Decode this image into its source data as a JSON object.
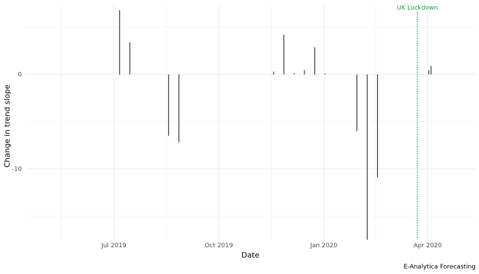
{
  "chart_data": {
    "type": "bar",
    "xlabel": "Date",
    "ylabel": "Change in trend slope",
    "x_ticks": [
      "2019-07-01",
      "2019-10-01",
      "2020-01-01",
      "2020-04-01"
    ],
    "x_tick_labels": [
      "Jul 2019",
      "Oct 2019",
      "Jan 2020",
      "Apr 2020"
    ],
    "y_ticks": [
      0,
      -10
    ],
    "y_tick_labels": [
      "0",
      "-10"
    ],
    "xlim": [
      "2019-04-15",
      "2020-05-13"
    ],
    "ylim": [
      -17.5,
      7.3
    ],
    "grid": true,
    "bar_color": "#333333",
    "points": [
      {
        "x": "2019-07-06",
        "y": 6.8
      },
      {
        "x": "2019-07-15",
        "y": 3.4
      },
      {
        "x": "2019-08-18",
        "y": -6.5
      },
      {
        "x": "2019-08-27",
        "y": -7.2
      },
      {
        "x": "2019-11-18",
        "y": 0.3
      },
      {
        "x": "2019-11-27",
        "y": 4.2
      },
      {
        "x": "2019-12-06",
        "y": 0.15
      },
      {
        "x": "2019-12-15",
        "y": 0.45
      },
      {
        "x": "2019-12-24",
        "y": 2.9
      },
      {
        "x": "2020-01-02",
        "y": 0.1
      },
      {
        "x": "2020-01-30",
        "y": -6.0
      },
      {
        "x": "2020-02-08",
        "y": -17.5
      },
      {
        "x": "2020-02-17",
        "y": -10.9
      },
      {
        "x": "2020-04-02",
        "y": 0.45
      },
      {
        "x": "2020-04-04",
        "y": 0.9
      }
    ],
    "annotation": {
      "x": "2020-03-23",
      "label": "UK Lockdown",
      "color": "#1a9850",
      "line_style": "dotted"
    },
    "caption": "E-Analytica Forecasting"
  }
}
